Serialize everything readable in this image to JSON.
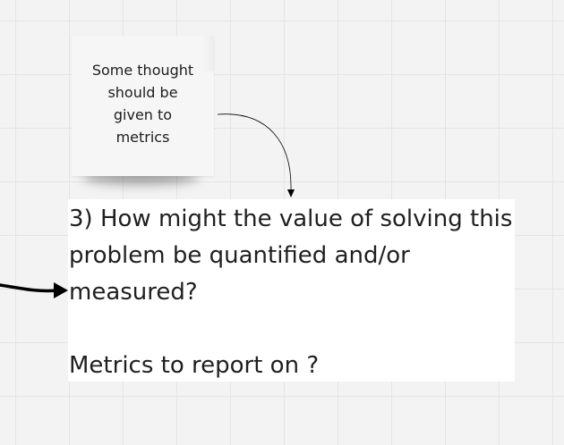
{
  "sticky_note": {
    "text": "Some thought should be given to metrics"
  },
  "text_block": {
    "question": "3) How might the value of solving this problem be quantified and/or measured?",
    "subtext": "Metrics to report on ?"
  },
  "colors": {
    "canvas_background": "#f3f3f3",
    "grid_line": "#e4e4e4",
    "sticky_note": "#f6f6f6",
    "text_block_background": "#ffffff",
    "text": "#1f1f1f",
    "connector": "#000000"
  }
}
